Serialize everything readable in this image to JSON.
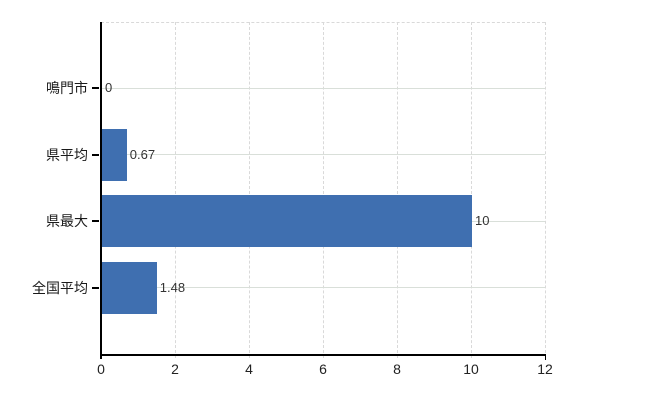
{
  "chart_data": {
    "type": "bar",
    "orientation": "horizontal",
    "title": "",
    "xlabel": "",
    "ylabel": "",
    "categories": [
      "鳴門市",
      "県平均",
      "県最大",
      "全国平均"
    ],
    "values": [
      0,
      0.67,
      10,
      1.48
    ],
    "value_labels": [
      "0",
      "0.67",
      "10",
      "1.48"
    ],
    "x_ticks": [
      0,
      2,
      4,
      6,
      8,
      10,
      12
    ],
    "x_tick_labels": [
      "0",
      "2",
      "4",
      "6",
      "8",
      "10",
      "12"
    ],
    "xlim": [
      0,
      12
    ],
    "grid": true,
    "legend": false,
    "bar_color": "#3f6fb0",
    "axis_color": "#000000",
    "gridline_color": "#d9d9d9"
  }
}
